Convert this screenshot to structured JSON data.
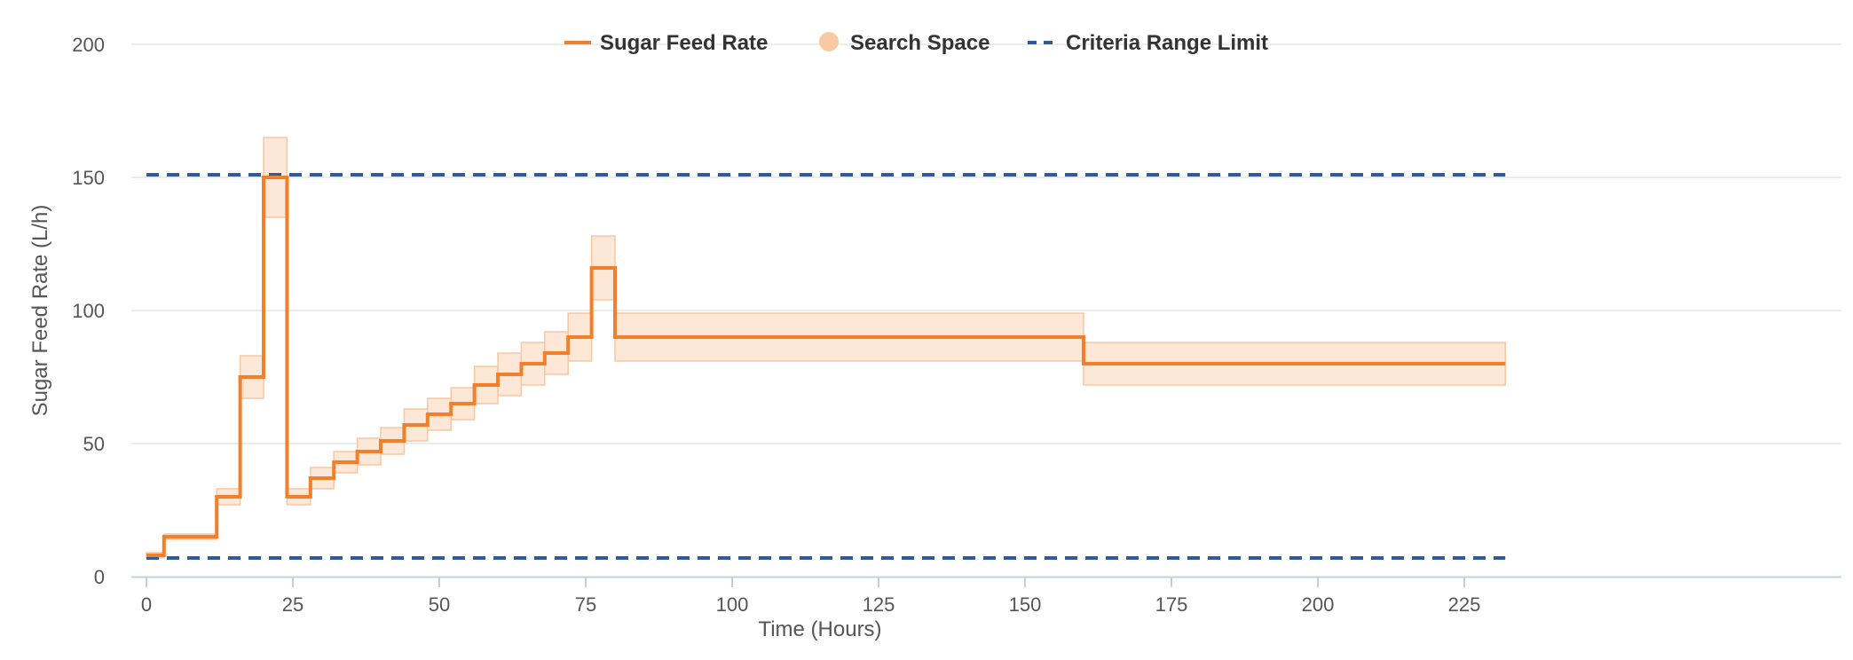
{
  "chart_data": {
    "type": "line",
    "title": "",
    "xlabel": "Time (Hours)",
    "ylabel": "Sugar Feed Rate (L/h)",
    "xlim": [
      0,
      232
    ],
    "ylim": [
      0,
      200
    ],
    "x_ticks": [
      0,
      25,
      50,
      75,
      100,
      125,
      150,
      175,
      200,
      225
    ],
    "y_ticks": [
      0,
      50,
      100,
      150,
      200
    ],
    "grid": "horizontal",
    "legend_position": "top-center",
    "colors": {
      "feed_rate": "#f47f2a",
      "band_fill": "#fde8d8",
      "band_stroke": "#f7c7a2",
      "legend_band": "#f9c9a1",
      "limit": "#2d5aa0",
      "grid": "#e6e6e6",
      "axis": "#c0d0e0",
      "text": "#555555"
    },
    "series": [
      {
        "name": "Sugar Feed Rate",
        "style": "step-line",
        "segments": [
          {
            "x0": 0,
            "x1": 3,
            "y": 8
          },
          {
            "x0": 3,
            "x1": 12,
            "y": 15
          },
          {
            "x0": 12,
            "x1": 16,
            "y": 30
          },
          {
            "x0": 16,
            "x1": 20,
            "y": 75
          },
          {
            "x0": 20,
            "x1": 24,
            "y": 150
          },
          {
            "x0": 24,
            "x1": 28,
            "y": 30
          },
          {
            "x0": 28,
            "x1": 32,
            "y": 37
          },
          {
            "x0": 32,
            "x1": 36,
            "y": 43
          },
          {
            "x0": 36,
            "x1": 40,
            "y": 47
          },
          {
            "x0": 40,
            "x1": 44,
            "y": 51
          },
          {
            "x0": 44,
            "x1": 48,
            "y": 57
          },
          {
            "x0": 48,
            "x1": 52,
            "y": 61
          },
          {
            "x0": 52,
            "x1": 56,
            "y": 65
          },
          {
            "x0": 56,
            "x1": 60,
            "y": 72
          },
          {
            "x0": 60,
            "x1": 64,
            "y": 76
          },
          {
            "x0": 64,
            "x1": 68,
            "y": 80
          },
          {
            "x0": 68,
            "x1": 72,
            "y": 84
          },
          {
            "x0": 72,
            "x1": 76,
            "y": 90
          },
          {
            "x0": 76,
            "x1": 80,
            "y": 116
          },
          {
            "x0": 80,
            "x1": 160,
            "y": 90
          },
          {
            "x0": 160,
            "x1": 232,
            "y": 80
          }
        ]
      },
      {
        "name": "Search Space",
        "style": "band",
        "segments": [
          {
            "x0": 0,
            "x1": 3,
            "low": 7,
            "high": 9
          },
          {
            "x0": 3,
            "x1": 12,
            "low": 14,
            "high": 16
          },
          {
            "x0": 12,
            "x1": 16,
            "low": 27,
            "high": 33
          },
          {
            "x0": 16,
            "x1": 20,
            "low": 67,
            "high": 83
          },
          {
            "x0": 20,
            "x1": 24,
            "low": 135,
            "high": 165
          },
          {
            "x0": 24,
            "x1": 28,
            "low": 27,
            "high": 33
          },
          {
            "x0": 28,
            "x1": 32,
            "low": 33,
            "high": 41
          },
          {
            "x0": 32,
            "x1": 36,
            "low": 39,
            "high": 47
          },
          {
            "x0": 36,
            "x1": 40,
            "low": 42,
            "high": 52
          },
          {
            "x0": 40,
            "x1": 44,
            "low": 46,
            "high": 56
          },
          {
            "x0": 44,
            "x1": 48,
            "low": 51,
            "high": 63
          },
          {
            "x0": 48,
            "x1": 52,
            "low": 55,
            "high": 67
          },
          {
            "x0": 52,
            "x1": 56,
            "low": 59,
            "high": 71
          },
          {
            "x0": 56,
            "x1": 60,
            "low": 65,
            "high": 79
          },
          {
            "x0": 60,
            "x1": 64,
            "low": 68,
            "high": 84
          },
          {
            "x0": 64,
            "x1": 68,
            "low": 72,
            "high": 88
          },
          {
            "x0": 68,
            "x1": 72,
            "low": 76,
            "high": 92
          },
          {
            "x0": 72,
            "x1": 76,
            "low": 81,
            "high": 99
          },
          {
            "x0": 76,
            "x1": 80,
            "low": 104,
            "high": 128
          },
          {
            "x0": 80,
            "x1": 160,
            "low": 81,
            "high": 99
          },
          {
            "x0": 160,
            "x1": 232,
            "low": 72,
            "high": 88
          }
        ]
      },
      {
        "name": "Criteria Range Limit",
        "style": "dashed",
        "lines": [
          {
            "x0": 0,
            "x1": 232,
            "y": 151
          },
          {
            "x0": 0,
            "x1": 232,
            "y": 7
          }
        ]
      }
    ]
  }
}
